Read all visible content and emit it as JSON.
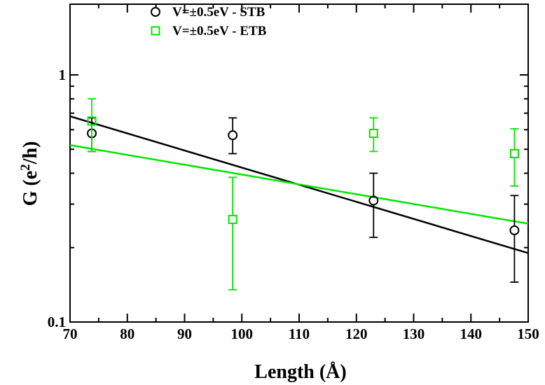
{
  "chart_data": {
    "type": "scatter",
    "xlabel": "Length (Å)",
    "ylabel": "G (e²/h)",
    "xlim": [
      70,
      150
    ],
    "ylim": [
      0.1,
      2.0
    ],
    "y_scale": "log",
    "x_ticks": [
      "70",
      "80",
      "90",
      "100",
      "110",
      "120",
      "130",
      "140",
      "150"
    ],
    "y_ticks": [
      {
        "value": 0.1,
        "label": "0.1"
      },
      {
        "value": 1,
        "label": "1"
      }
    ],
    "legend_position": "top-left",
    "series": [
      {
        "name": "V=±0.5eV - STB",
        "marker": "circle",
        "color": "#000000",
        "points": [
          {
            "x": 73.8,
            "y": 0.58,
            "ylow": 0.49,
            "yhigh": 0.67
          },
          {
            "x": 98.4,
            "y": 0.57,
            "ylow": 0.48,
            "yhigh": 0.67
          },
          {
            "x": 123.0,
            "y": 0.31,
            "ylow": 0.22,
            "yhigh": 0.4
          },
          {
            "x": 147.6,
            "y": 0.235,
            "ylow": 0.145,
            "yhigh": 0.325
          }
        ],
        "fit": {
          "x": [
            70,
            150
          ],
          "y": [
            0.68,
            0.19
          ]
        }
      },
      {
        "name": "V=±0.5eV - ETB",
        "marker": "square",
        "color": "#00e600",
        "points": [
          {
            "x": 73.8,
            "y": 0.65,
            "ylow": 0.49,
            "yhigh": 0.8
          },
          {
            "x": 98.4,
            "y": 0.26,
            "ylow": 0.135,
            "yhigh": 0.385
          },
          {
            "x": 123.0,
            "y": 0.58,
            "ylow": 0.49,
            "yhigh": 0.67
          },
          {
            "x": 147.6,
            "y": 0.48,
            "ylow": 0.355,
            "yhigh": 0.605
          }
        ],
        "fit": {
          "x": [
            70,
            150
          ],
          "y": [
            0.52,
            0.25
          ]
        }
      }
    ]
  }
}
